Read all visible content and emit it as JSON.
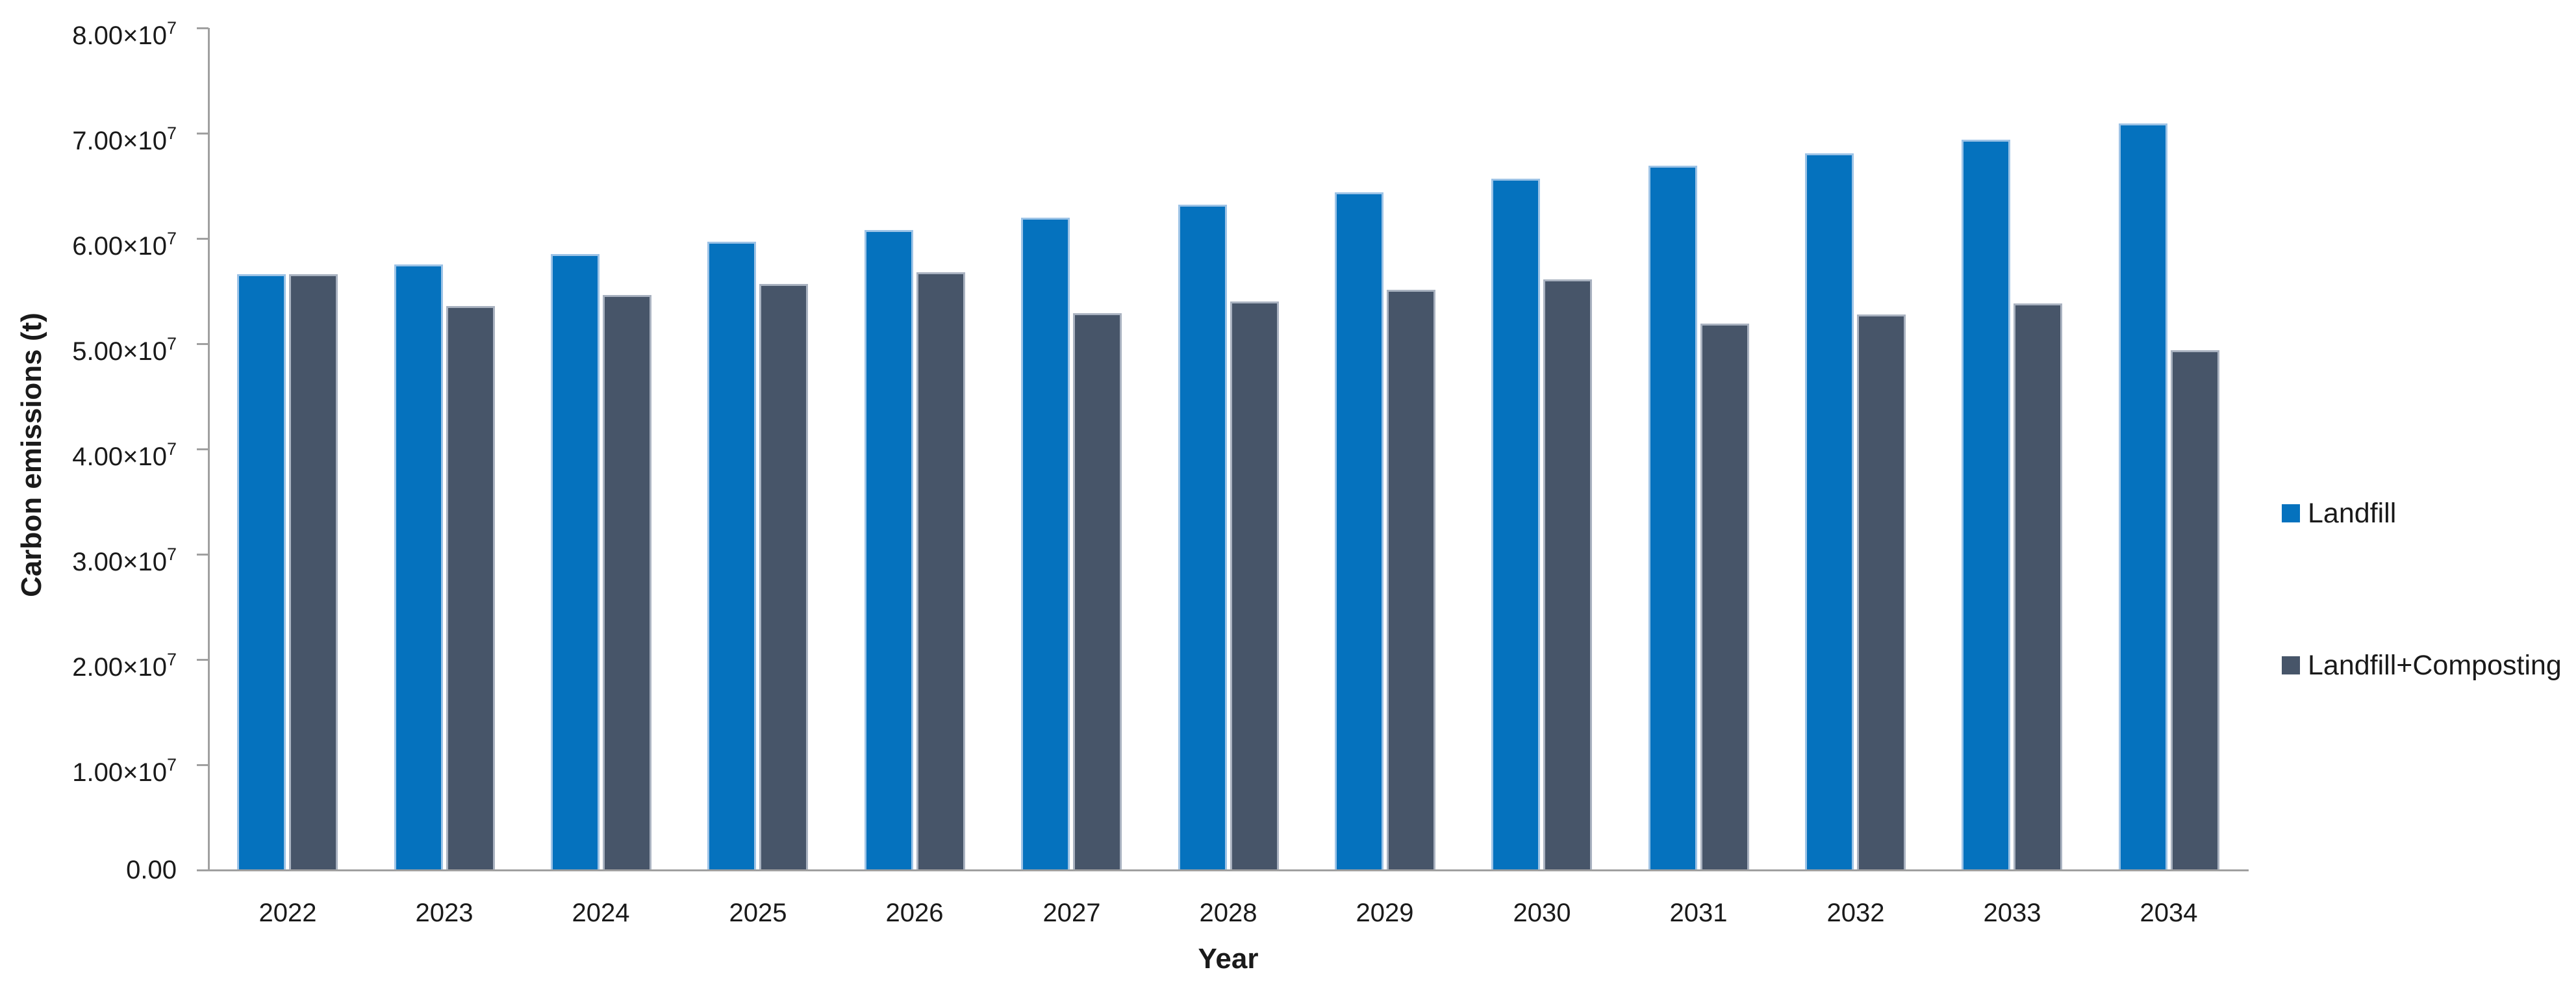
{
  "chart_data": {
    "type": "bar",
    "title": "",
    "xlabel": "Year",
    "ylabel": "Carbon emissions (t)",
    "categories": [
      "2022",
      "2023",
      "2024",
      "2025",
      "2026",
      "2027",
      "2028",
      "2029",
      "2030",
      "2031",
      "2032",
      "2033",
      "2034"
    ],
    "series": [
      {
        "name": "Landfill",
        "color": "#0572be",
        "values": [
          56600000,
          57500000,
          58500000,
          59700000,
          60800000,
          62000000,
          63200000,
          64400000,
          65700000,
          66900000,
          68100000,
          69400000,
          70900000
        ]
      },
      {
        "name": "Landfill+Composting",
        "color": "#475569",
        "values": [
          56600000,
          53600000,
          54600000,
          55700000,
          56800000,
          52900000,
          54000000,
          55100000,
          56100000,
          51900000,
          52800000,
          53800000,
          49400000
        ]
      }
    ],
    "ylim": [
      0,
      80000000
    ],
    "y_ticks": [
      {
        "value": 0,
        "mantissa": "0.00",
        "exponent": ""
      },
      {
        "value": 10000000,
        "mantissa": "1.00",
        "exponent": "7"
      },
      {
        "value": 20000000,
        "mantissa": "2.00",
        "exponent": "7"
      },
      {
        "value": 30000000,
        "mantissa": "3.00",
        "exponent": "7"
      },
      {
        "value": 40000000,
        "mantissa": "4.00",
        "exponent": "7"
      },
      {
        "value": 50000000,
        "mantissa": "5.00",
        "exponent": "7"
      },
      {
        "value": 60000000,
        "mantissa": "6.00",
        "exponent": "7"
      },
      {
        "value": 70000000,
        "mantissa": "7.00",
        "exponent": "7"
      },
      {
        "value": 80000000,
        "mantissa": "8.00",
        "exponent": "7"
      }
    ],
    "times_ten_prefix": "×10",
    "grid": false,
    "legend_position": "right"
  }
}
